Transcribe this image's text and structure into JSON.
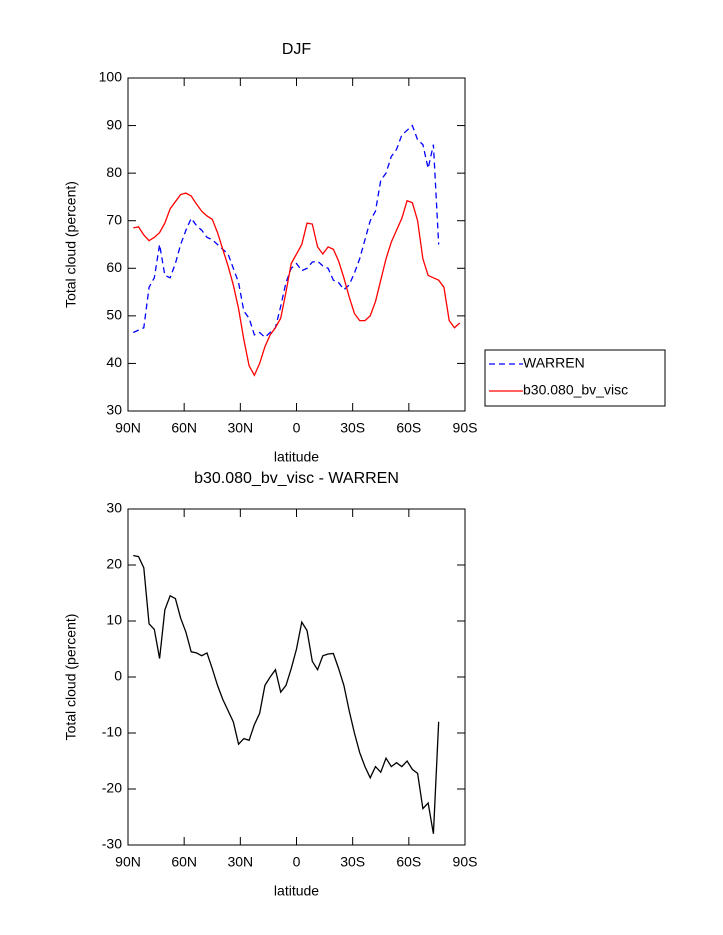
{
  "chart_data": [
    {
      "type": "line",
      "title": "DJF",
      "xlabel": "latitude",
      "ylabel": "Total cloud (percent)",
      "x": [
        87.1875,
        84.375,
        81.5625,
        78.75,
        75.9375,
        73.125,
        70.3125,
        67.5,
        64.6875,
        61.875,
        59.0625,
        56.25,
        53.4375,
        50.625,
        47.8125,
        45,
        42.1875,
        39.375,
        36.5625,
        33.75,
        30.9375,
        28.125,
        25.3125,
        22.5,
        19.6875,
        16.875,
        14.0625,
        11.25,
        8.4375,
        5.625,
        2.8125,
        0,
        -2.8125,
        -5.625,
        -8.4375,
        -11.25,
        -14.0625,
        -16.875,
        -19.6875,
        -22.5,
        -25.3125,
        -28.125,
        -30.9375,
        -33.75,
        -36.5625,
        -39.375,
        -42.1875,
        -45,
        -47.8125,
        -50.625,
        -53.4375,
        -56.25,
        -59.0625,
        -61.875,
        -64.6875,
        -67.5,
        -70.3125,
        -73.125,
        -75.9375,
        -78.75,
        -81.5625,
        -84.375,
        -87.1875
      ],
      "series": [
        {
          "name": "WARREN",
          "color": "#0000ff",
          "linestyle": "dashed",
          "values": [
            46.5,
            47,
            47.5,
            56,
            58,
            65,
            58.5,
            58,
            61,
            65,
            68,
            70.5,
            69,
            68,
            66.5,
            66,
            65,
            64,
            63,
            60,
            57,
            51,
            49.5,
            46,
            46.5,
            45.5,
            46.5,
            47.5,
            52,
            57,
            60,
            61,
            59.5,
            60,
            61.3,
            61.5,
            60.5,
            60,
            57.5,
            57,
            55.5,
            56.5,
            59,
            62,
            66,
            70,
            72,
            78.5,
            80,
            83.5,
            85,
            88,
            89,
            90,
            87,
            86,
            81,
            86,
            65,
            null,
            null,
            null,
            null
          ]
        },
        {
          "name": "b30.080_bv_visc",
          "color": "#ff0000",
          "linestyle": "solid",
          "values": [
            68.5,
            68.7,
            67,
            65.8,
            66.5,
            67.5,
            69.5,
            72.5,
            74,
            75.5,
            75.8,
            75.2,
            73.5,
            72,
            71,
            70.3,
            67.5,
            64,
            60.5,
            56.5,
            51.5,
            45,
            39.5,
            37.5,
            40,
            43.5,
            46,
            47.5,
            49.5,
            55,
            61,
            63,
            65,
            69.5,
            69.3,
            64.5,
            63,
            64.5,
            64,
            61.5,
            58,
            54,
            50.5,
            49,
            49,
            50,
            53,
            57.5,
            62,
            65.5,
            68,
            70.5,
            74.2,
            73.8,
            70,
            62,
            58.5,
            58,
            57.5,
            56,
            49,
            47.5,
            48.5
          ]
        }
      ],
      "xlim": [
        90,
        -90
      ],
      "xticks": [
        {
          "value": 90,
          "label": "90N"
        },
        {
          "value": 60,
          "label": "60N"
        },
        {
          "value": 30,
          "label": "30N"
        },
        0,
        {
          "value": -30,
          "label": "30S"
        },
        {
          "value": -60,
          "label": "60S"
        },
        {
          "value": -90,
          "label": "90S"
        }
      ],
      "ylim": [
        30,
        100
      ],
      "yticks": [
        30,
        40,
        50,
        60,
        70,
        80,
        90,
        100
      ],
      "grid": false,
      "legend": "right"
    },
    {
      "type": "line",
      "title": "b30.080_bv_visc - WARREN",
      "xlabel": "latitude",
      "ylabel": "Total cloud (percent)",
      "x": [
        87.1875,
        84.375,
        81.5625,
        78.75,
        75.9375,
        73.125,
        70.3125,
        67.5,
        64.6875,
        61.875,
        59.0625,
        56.25,
        53.4375,
        50.625,
        47.8125,
        45,
        42.1875,
        39.375,
        36.5625,
        33.75,
        30.9375,
        28.125,
        25.3125,
        22.5,
        19.6875,
        16.875,
        14.0625,
        11.25,
        8.4375,
        5.625,
        2.8125,
        0,
        -2.8125,
        -5.625,
        -8.4375,
        -11.25,
        -14.0625,
        -16.875,
        -19.6875,
        -22.5,
        -25.3125,
        -28.125,
        -30.9375,
        -33.75,
        -36.5625,
        -39.375,
        -42.1875,
        -45,
        -47.8125,
        -50.625,
        -53.4375,
        -56.25,
        -59.0625,
        -61.875,
        -64.6875,
        -67.5,
        -70.3125,
        -73.125,
        -75.9375,
        -78.75,
        -81.5625,
        -84.375,
        -87.1875
      ],
      "series": [
        {
          "color": "#000000",
          "linestyle": "solid",
          "values": [
            21.7,
            21.5,
            19.5,
            9.5,
            8.5,
            3.3,
            12,
            14.5,
            14,
            10.5,
            8,
            4.5,
            4.3,
            3.8,
            4.3,
            1.5,
            -1.5,
            -4,
            -6,
            -8,
            -12,
            -11,
            -11.3,
            -8.5,
            -6.5,
            -1.5,
            0,
            1.3,
            -2.7,
            -1.5,
            1.5,
            5,
            9.8,
            8.3,
            2.8,
            1.3,
            3.8,
            4.1,
            4.2,
            1.5,
            -1.5,
            -6,
            -10,
            -13.5,
            -16,
            -18,
            -16,
            -17,
            -14.5,
            -16,
            -15.3,
            -16,
            -15,
            -16.5,
            -17.2,
            -23.5,
            -22.5,
            -28,
            -8,
            null,
            null,
            null,
            null
          ]
        }
      ],
      "xlim": [
        90,
        -90
      ],
      "xticks": [
        {
          "value": 90,
          "label": "90N"
        },
        {
          "value": 60,
          "label": "60N"
        },
        {
          "value": 30,
          "label": "30N"
        },
        0,
        {
          "value": -30,
          "label": "30S"
        },
        {
          "value": -60,
          "label": "60S"
        },
        {
          "value": -90,
          "label": "90S"
        }
      ],
      "ylim": [
        -30,
        30
      ],
      "yticks": [
        -30,
        -20,
        -10,
        0,
        10,
        20,
        30
      ],
      "grid": false
    }
  ]
}
